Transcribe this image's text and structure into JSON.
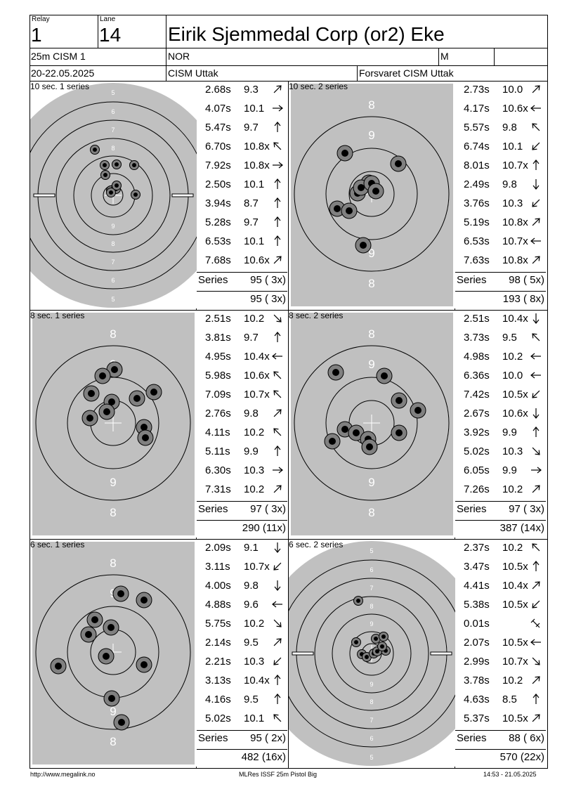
{
  "header": {
    "relay_label": "Relay",
    "relay_value": "1",
    "lane_label": "Lane",
    "lane_value": "14",
    "shooter_name": "Eirik Sjemmedal Corp (or2) Eke",
    "event": "25m CISM 1",
    "nation": "NOR",
    "gender": "M",
    "dates": "20-22.05.2025",
    "competition": "CISM Uttak",
    "club": "Forsvaret CISM Uttak"
  },
  "panels": [
    {
      "title": "10 sec. 1 series",
      "target_type": "precision",
      "shots": [
        {
          "time": "2.68s",
          "score": "9.3",
          "arrow": "up-right"
        },
        {
          "time": "4.07s",
          "score": "10.1",
          "arrow": "right"
        },
        {
          "time": "5.47s",
          "score": "9.7",
          "arrow": "up"
        },
        {
          "time": "6.70s",
          "score": "10.8x",
          "arrow": "up-left"
        },
        {
          "time": "7.92s",
          "score": "10.8x",
          "arrow": "right"
        },
        {
          "time": "2.50s",
          "score": "10.1",
          "arrow": "up"
        },
        {
          "time": "3.94s",
          "score": "8.7",
          "arrow": "up"
        },
        {
          "time": "5.28s",
          "score": "9.7",
          "arrow": "up"
        },
        {
          "time": "6.53s",
          "score": "10.1",
          "arrow": "up"
        },
        {
          "time": "7.68s",
          "score": "10.6x",
          "arrow": "up-right"
        }
      ],
      "series_label": "Series",
      "series_total": "95 ( 3x)",
      "running_total": "95 ( 3x)"
    },
    {
      "title": "10 sec. 2 series",
      "target_type": "rapid",
      "shots": [
        {
          "time": "2.73s",
          "score": "10.0",
          "arrow": "up-right"
        },
        {
          "time": "4.17s",
          "score": "10.6x",
          "arrow": "left"
        },
        {
          "time": "5.57s",
          "score": "9.8",
          "arrow": "up-left"
        },
        {
          "time": "6.74s",
          "score": "10.1",
          "arrow": "down-left"
        },
        {
          "time": "8.01s",
          "score": "10.7x",
          "arrow": "up"
        },
        {
          "time": "2.49s",
          "score": "9.8",
          "arrow": "down"
        },
        {
          "time": "3.76s",
          "score": "10.3",
          "arrow": "down-left"
        },
        {
          "time": "5.19s",
          "score": "10.8x",
          "arrow": "up-right"
        },
        {
          "time": "6.53s",
          "score": "10.7x",
          "arrow": "left"
        },
        {
          "time": "7.63s",
          "score": "10.8x",
          "arrow": "up-right"
        }
      ],
      "series_label": "Series",
      "series_total": "98 ( 5x)",
      "running_total": "193 ( 8x)"
    },
    {
      "title": "8 sec. 1 series",
      "target_type": "rapid",
      "shots": [
        {
          "time": "2.51s",
          "score": "10.2",
          "arrow": "down-right"
        },
        {
          "time": "3.81s",
          "score": "9.7",
          "arrow": "up"
        },
        {
          "time": "4.95s",
          "score": "10.4x",
          "arrow": "left"
        },
        {
          "time": "5.98s",
          "score": "10.6x",
          "arrow": "up-left"
        },
        {
          "time": "7.09s",
          "score": "10.7x",
          "arrow": "up-left"
        },
        {
          "time": "2.76s",
          "score": "9.8",
          "arrow": "up-right"
        },
        {
          "time": "4.11s",
          "score": "10.2",
          "arrow": "up-left"
        },
        {
          "time": "5.11s",
          "score": "9.9",
          "arrow": "up"
        },
        {
          "time": "6.30s",
          "score": "10.3",
          "arrow": "right"
        },
        {
          "time": "7.31s",
          "score": "10.2",
          "arrow": "up-right"
        }
      ],
      "series_label": "Series",
      "series_total": "97 ( 3x)",
      "running_total": "290 (11x)"
    },
    {
      "title": "8 sec. 2 series",
      "target_type": "rapid",
      "shots": [
        {
          "time": "2.51s",
          "score": "10.4x",
          "arrow": "down"
        },
        {
          "time": "3.73s",
          "score": "9.5",
          "arrow": "up-left"
        },
        {
          "time": "4.98s",
          "score": "10.2",
          "arrow": "left"
        },
        {
          "time": "6.36s",
          "score": "10.0",
          "arrow": "left"
        },
        {
          "time": "7.42s",
          "score": "10.5x",
          "arrow": "down-left"
        },
        {
          "time": "2.67s",
          "score": "10.6x",
          "arrow": "down"
        },
        {
          "time": "3.92s",
          "score": "9.9",
          "arrow": "up"
        },
        {
          "time": "5.02s",
          "score": "10.3",
          "arrow": "down-right"
        },
        {
          "time": "6.05s",
          "score": "9.9",
          "arrow": "right"
        },
        {
          "time": "7.26s",
          "score": "10.2",
          "arrow": "up-right"
        }
      ],
      "series_label": "Series",
      "series_total": "97 ( 3x)",
      "running_total": "387 (14x)"
    },
    {
      "title": "6 sec. 1 series",
      "target_type": "rapid",
      "shots": [
        {
          "time": "2.09s",
          "score": "9.1",
          "arrow": "down"
        },
        {
          "time": "3.11s",
          "score": "10.7x",
          "arrow": "down-left"
        },
        {
          "time": "4.00s",
          "score": "9.8",
          "arrow": "down"
        },
        {
          "time": "4.88s",
          "score": "9.6",
          "arrow": "left"
        },
        {
          "time": "5.75s",
          "score": "10.2",
          "arrow": "down-right"
        },
        {
          "time": "2.14s",
          "score": "9.5",
          "arrow": "up-right"
        },
        {
          "time": "2.21s",
          "score": "10.3",
          "arrow": "down-left"
        },
        {
          "time": "3.13s",
          "score": "10.4x",
          "arrow": "up"
        },
        {
          "time": "4.16s",
          "score": "9.5",
          "arrow": "up"
        },
        {
          "time": "5.02s",
          "score": "10.1",
          "arrow": "up-left"
        }
      ],
      "series_label": "Series",
      "series_total": "95 ( 2x)",
      "running_total": "482 (16x)"
    },
    {
      "title": "6 sec. 2 series",
      "target_type": "precision",
      "shots": [
        {
          "time": "2.37s",
          "score": "10.2",
          "arrow": "up-left"
        },
        {
          "time": "3.47s",
          "score": "10.5x",
          "arrow": "up"
        },
        {
          "time": "4.41s",
          "score": "10.4x",
          "arrow": "up-right"
        },
        {
          "time": "5.38s",
          "score": "10.5x",
          "arrow": "down-left"
        },
        {
          "time": "0.01s",
          "score": "",
          "arrow": "sighter"
        },
        {
          "time": "2.07s",
          "score": "10.5x",
          "arrow": "left"
        },
        {
          "time": "2.99s",
          "score": "10.7x",
          "arrow": "down-right"
        },
        {
          "time": "3.78s",
          "score": "10.2",
          "arrow": "up-right"
        },
        {
          "time": "4.63s",
          "score": "8.5",
          "arrow": "up"
        },
        {
          "time": "5.37s",
          "score": "10.5x",
          "arrow": "up-right"
        }
      ],
      "series_label": "Series",
      "series_total": "88 ( 6x)",
      "running_total": "570 (22x)"
    }
  ],
  "precision_ring_labels": [
    "5",
    "6",
    "7",
    "8",
    "9"
  ],
  "rapid_ring_labels": [
    "8",
    "9"
  ],
  "footer": {
    "left": "http://www.megalink.no",
    "center": "MLRes ISSF 25m Pistol Big",
    "right": "14:53 - 21.05.2025"
  },
  "colors": {
    "target_gray": "#c0c0c0",
    "ring_line": "#000000",
    "hole_outer": "#808080",
    "hole_inner": "#000000"
  }
}
